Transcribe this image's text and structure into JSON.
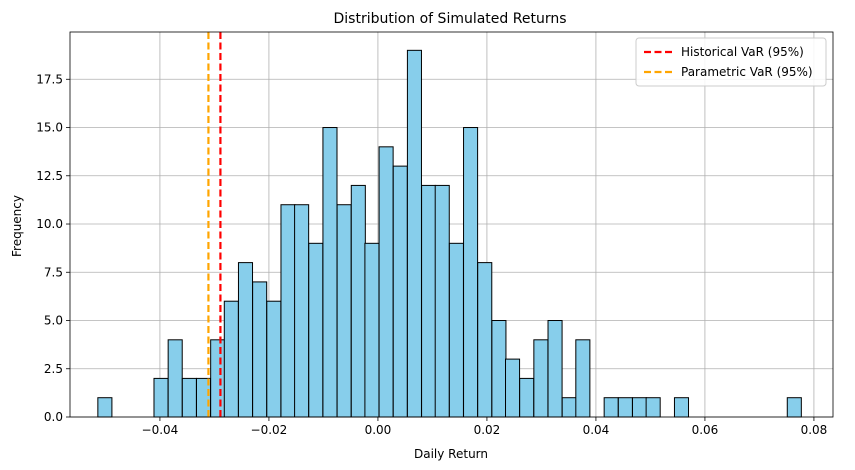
{
  "chart_data": {
    "type": "bar",
    "title": "Distribution of Simulated Returns",
    "xlabel": "Daily Return",
    "ylabel": "Frequency",
    "xlim": [
      -0.0565,
      0.0835
    ],
    "ylim": [
      0,
      19.95
    ],
    "grid": true,
    "legend_position": "top-right",
    "bar_color": "#87ceeb",
    "edge_color": "#000000",
    "bin_width": 0.00258,
    "x_ticks": [
      -0.04,
      -0.02,
      0.0,
      0.02,
      0.04,
      0.06,
      0.08
    ],
    "x_tick_labels": [
      "−0.04",
      "−0.02",
      "0.00",
      "0.02",
      "0.04",
      "0.06",
      "0.08"
    ],
    "y_ticks": [
      0,
      2.5,
      5,
      7.5,
      10,
      12.5,
      15,
      17.5
    ],
    "y_tick_labels": [
      "0.0",
      "2.5",
      "5.0",
      "7.5",
      "10.0",
      "12.5",
      "15.0",
      "17.5"
    ],
    "bins": [
      {
        "x": -0.0501,
        "count": 1
      },
      {
        "x": -0.0475,
        "count": 0
      },
      {
        "x": -0.0449,
        "count": 0
      },
      {
        "x": -0.0424,
        "count": 0
      },
      {
        "x": -0.0398,
        "count": 2
      },
      {
        "x": -0.0372,
        "count": 4
      },
      {
        "x": -0.0346,
        "count": 2
      },
      {
        "x": -0.032,
        "count": 2
      },
      {
        "x": -0.0294,
        "count": 4
      },
      {
        "x": -0.0269,
        "count": 6
      },
      {
        "x": -0.0243,
        "count": 8
      },
      {
        "x": -0.0217,
        "count": 7
      },
      {
        "x": -0.0191,
        "count": 6
      },
      {
        "x": -0.0165,
        "count": 11
      },
      {
        "x": -0.014,
        "count": 11
      },
      {
        "x": -0.0114,
        "count": 9
      },
      {
        "x": -0.0088,
        "count": 15
      },
      {
        "x": -0.0062,
        "count": 11
      },
      {
        "x": -0.0036,
        "count": 12
      },
      {
        "x": -0.0011,
        "count": 9
      },
      {
        "x": 0.0015,
        "count": 14
      },
      {
        "x": 0.0041,
        "count": 13
      },
      {
        "x": 0.0067,
        "count": 19
      },
      {
        "x": 0.0093,
        "count": 12
      },
      {
        "x": 0.0118,
        "count": 12
      },
      {
        "x": 0.0144,
        "count": 9
      },
      {
        "x": 0.017,
        "count": 15
      },
      {
        "x": 0.0196,
        "count": 8
      },
      {
        "x": 0.0222,
        "count": 5
      },
      {
        "x": 0.0247,
        "count": 3
      },
      {
        "x": 0.0273,
        "count": 2
      },
      {
        "x": 0.0299,
        "count": 4
      },
      {
        "x": 0.0325,
        "count": 5
      },
      {
        "x": 0.0351,
        "count": 1
      },
      {
        "x": 0.0376,
        "count": 4
      },
      {
        "x": 0.0402,
        "count": 0
      },
      {
        "x": 0.0428,
        "count": 1
      },
      {
        "x": 0.0454,
        "count": 1
      },
      {
        "x": 0.048,
        "count": 1
      },
      {
        "x": 0.0505,
        "count": 1
      },
      {
        "x": 0.0531,
        "count": 0
      },
      {
        "x": 0.0557,
        "count": 1
      },
      {
        "x": 0.0583,
        "count": 0
      },
      {
        "x": 0.0609,
        "count": 0
      },
      {
        "x": 0.0634,
        "count": 0
      },
      {
        "x": 0.066,
        "count": 0
      },
      {
        "x": 0.0686,
        "count": 0
      },
      {
        "x": 0.0712,
        "count": 0
      },
      {
        "x": 0.0738,
        "count": 0
      },
      {
        "x": 0.0764,
        "count": 1
      }
    ],
    "vlines": [
      {
        "name": "Historical VaR (95%)",
        "x": -0.0289,
        "color": "#ff0000"
      },
      {
        "name": "Parametric VaR (95%)",
        "x": -0.0311,
        "color": "#ffa500"
      }
    ]
  }
}
